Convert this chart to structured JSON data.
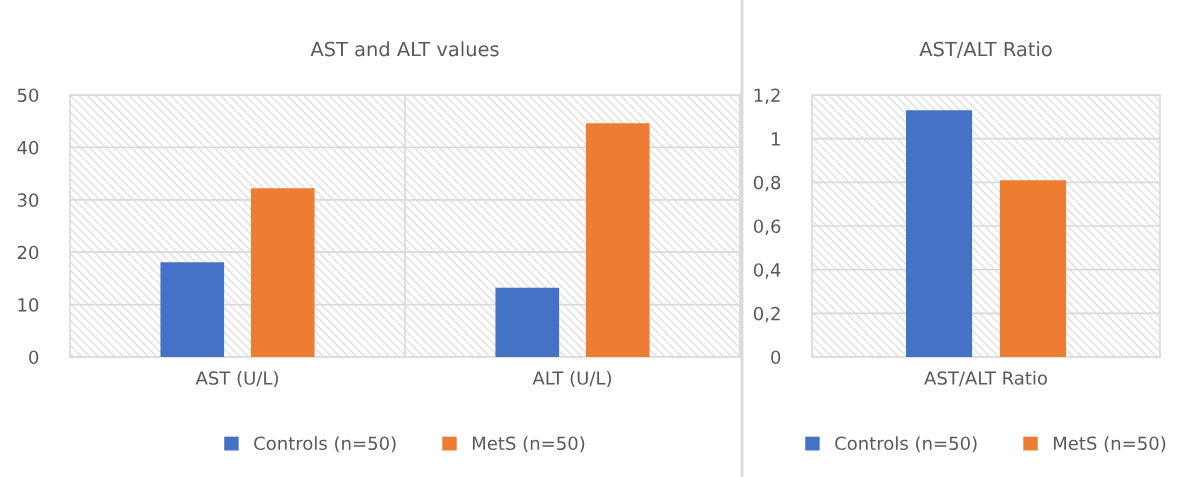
{
  "chart_data": [
    {
      "type": "bar",
      "title": "AST and ALT values",
      "categories": [
        "AST (U/L)",
        "ALT (U/L)"
      ],
      "series": [
        {
          "name": "Controls (n=50)",
          "color": "#4472c4",
          "values": [
            18.1,
            13.2
          ]
        },
        {
          "name": "MetS (n=50)",
          "color": "#ed7d31",
          "values": [
            32.2,
            44.6
          ]
        }
      ],
      "ylim": [
        0,
        50
      ],
      "yticks": [
        0,
        10,
        20,
        30,
        40,
        50
      ],
      "grid": "y",
      "legend": "bottom"
    },
    {
      "type": "bar",
      "title": "AST/ALT Ratio",
      "categories": [
        "AST/ALT Ratio"
      ],
      "series": [
        {
          "name": "Controls (n=50)",
          "color": "#4472c4",
          "values": [
            1.13
          ]
        },
        {
          "name": "MetS (n=50)",
          "color": "#ed7d31",
          "values": [
            0.81
          ]
        }
      ],
      "ylim": [
        0,
        1.2
      ],
      "yticks": [
        0,
        {
          "value": 0.2,
          "label": "0,2"
        },
        {
          "value": 0.4,
          "label": "0,4"
        },
        {
          "value": 0.6,
          "label": "0,6"
        },
        {
          "value": 0.8,
          "label": "0,8"
        },
        1,
        {
          "value": 1.2,
          "label": "1,2"
        }
      ],
      "grid": "y",
      "legend": "bottom"
    }
  ]
}
